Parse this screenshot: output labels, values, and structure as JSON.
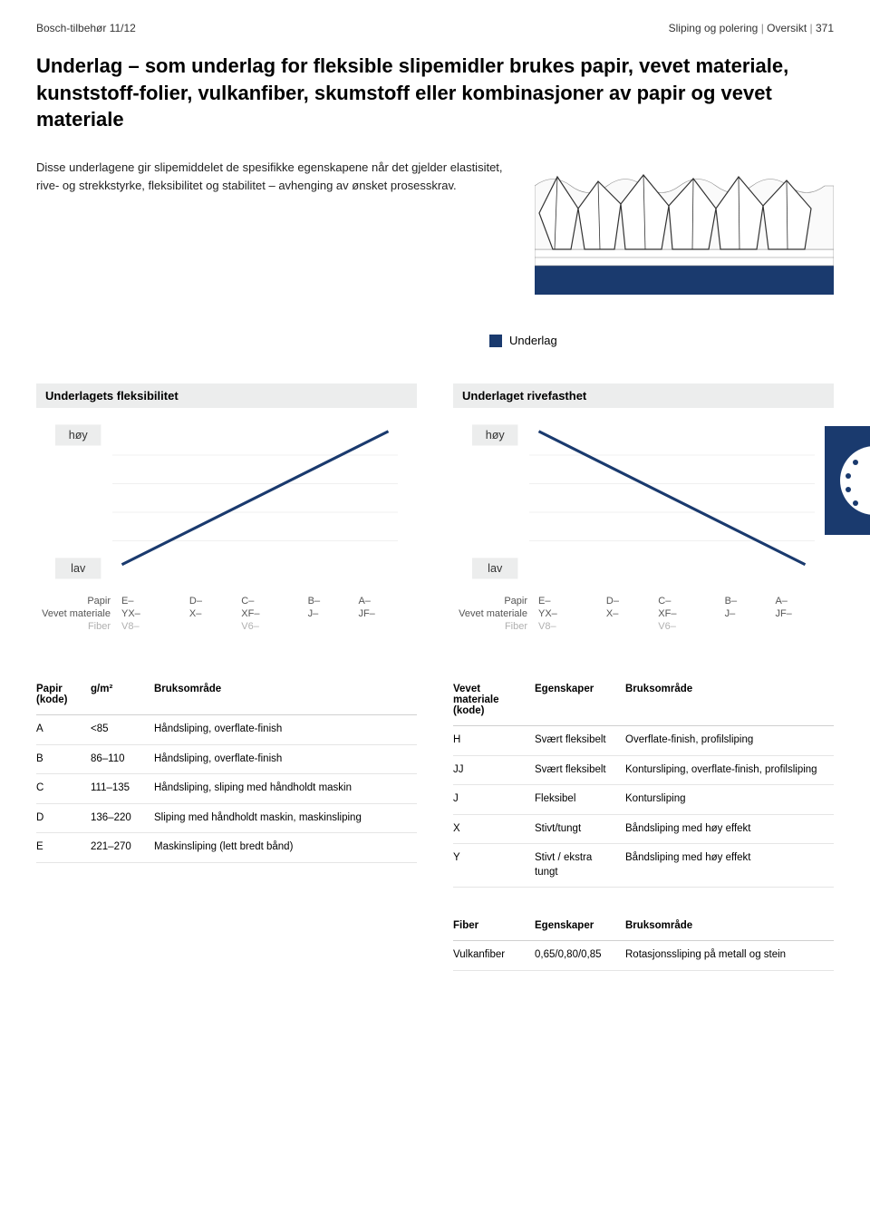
{
  "header": {
    "left": "Bosch-tilbehør 11/12",
    "right_parts": [
      "Sliping og polering",
      "Oversikt",
      "371"
    ]
  },
  "title_lead": "Underlag",
  "title_rest": " – som underlag for fleksible slipemidler brukes papir, vevet materiale, kunststoff-folier, vulkanfiber, skumstoff eller kombinasjoner av papir og vevet materiale",
  "intro": "Disse underlagene gir slipemiddelet de spesifikke egenskapene når det gjelder elastisitet, rive- og strekkstyrke, fleksibilitet og stabilitet – avhenging av ønsket prosesskrav.",
  "legend_label": "Underlag",
  "charts": {
    "colors": {
      "line": "#1a3a6e",
      "grid": "#f0f0f0",
      "axis_label_bg": "#eceded",
      "fiber_text": "#b0b0b0"
    },
    "flexibility": {
      "title": "Underlagets fleksibilitet",
      "y_hi": "høy",
      "y_lo": "lav",
      "line_start": [
        0,
        100
      ],
      "line_end": [
        100,
        0
      ]
    },
    "tear": {
      "title": "Underlaget rivefasthet",
      "y_hi": "høy",
      "y_lo": "lav",
      "line_start": [
        0,
        0
      ],
      "line_end": [
        100,
        100
      ]
    },
    "axis_rows": [
      {
        "label": "Papir",
        "cells": [
          "E–",
          "D–",
          "C–",
          "B–",
          "A–"
        ],
        "cls": ""
      },
      {
        "label": "Vevet materiale",
        "cells": [
          "YX–",
          "X–",
          "XF–",
          "J–",
          "JF–"
        ],
        "cls": ""
      },
      {
        "label": "Fiber",
        "cells": [
          "V8–",
          "",
          "V6–",
          "",
          ""
        ],
        "cls": "fiber"
      }
    ]
  },
  "paper_table": {
    "headers": [
      "Papir (kode)",
      "g/m²",
      "Bruksområde"
    ],
    "rows": [
      [
        "A",
        "<85",
        "Håndsliping, overflate-finish"
      ],
      [
        "B",
        "86–110",
        "Håndsliping, overflate-finish"
      ],
      [
        "C",
        "111–135",
        "Håndsliping, sliping med håndholdt maskin"
      ],
      [
        "D",
        "136–220",
        "Sliping med håndholdt maskin, maskinsliping"
      ],
      [
        "E",
        "221–270",
        "Maskinsliping (lett bredt bånd)"
      ]
    ]
  },
  "woven_table": {
    "headers": [
      "Vevet materiale (kode)",
      "Egenskaper",
      "Bruksområde"
    ],
    "rows": [
      [
        "H",
        "Svært fleksibelt",
        "Overflate-finish, profilsliping"
      ],
      [
        "JJ",
        "Svært fleksibelt",
        "Kontursliping, overflate-finish, profilsliping"
      ],
      [
        "J",
        "Fleksibel",
        "Kontursliping"
      ],
      [
        "X",
        "Stivt/tungt",
        "Båndsliping med høy effekt"
      ],
      [
        "Y",
        "Stivt / ekstra tungt",
        "Båndsliping med høy effekt"
      ]
    ]
  },
  "fiber_table": {
    "headers": [
      "Fiber",
      "Egenskaper",
      "Bruksområde"
    ],
    "rows": [
      [
        "Vulkanfiber",
        "0,65/0,80/0,85",
        "Rotasjonssliping på metall og stein"
      ]
    ]
  }
}
